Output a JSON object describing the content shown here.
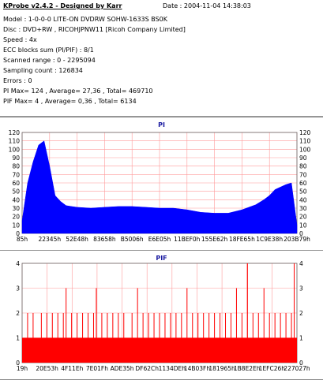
{
  "header": {
    "title": "KProbe v2.4.2 - Designed by Karr",
    "date": "Date : 2004-11-04 14:38:03"
  },
  "info_lines": [
    "Model : 1-0-0-0 LITE-ON DVDRW SOHW-1633S BS0K",
    "Disc : DVD+RW , RICOHJPNW11 [Ricoh Company Limited]",
    "Speed : 4x",
    "ECC blocks sum (PI/PIF) : 8/1",
    "Scanned range : 0 - 2295094",
    "Sampling count : 126834",
    "Errors : 0",
    "PI Max= 124 , Average= 27,36 , Total= 469710",
    "PIF Max= 4 , Average= 0,36 , Total= 6134"
  ],
  "colors": {
    "pi_fill": "#0000ff",
    "pif_fill": "#ff0000",
    "grid": "#ff9a9a",
    "title": "#1a1aa0"
  },
  "chart_data": [
    {
      "type": "area",
      "title": "PI",
      "ylim": [
        0,
        120
      ],
      "yticks": [
        0,
        10,
        20,
        30,
        40,
        50,
        60,
        70,
        80,
        90,
        100,
        110,
        120
      ],
      "xtick_labels": [
        "85h",
        "22345h",
        "52E48h",
        "83658h",
        "B5006h",
        "E6E05h",
        "11BEF0h",
        "155E62h",
        "18FE65h",
        "1C9E38h",
        "203B79h"
      ],
      "grid": true,
      "series": [
        {
          "x_frac": [
            0,
            0.02,
            0.04,
            0.06,
            0.08,
            0.1,
            0.12,
            0.14,
            0.16,
            0.18,
            0.2,
            0.25,
            0.3,
            0.35,
            0.4,
            0.45,
            0.5,
            0.55,
            0.6,
            0.65,
            0.7,
            0.75,
            0.8,
            0.85,
            0.88,
            0.9,
            0.92,
            0.94,
            0.96,
            0.98,
            1.0
          ],
          "values": [
            15,
            60,
            85,
            105,
            110,
            80,
            45,
            38,
            33,
            32,
            31,
            30,
            31,
            32,
            32,
            31,
            30,
            30,
            28,
            25,
            24,
            24,
            28,
            34,
            40,
            45,
            52,
            55,
            58,
            60,
            10
          ]
        }
      ]
    },
    {
      "type": "bar",
      "title": "PIF",
      "ylim": [
        0,
        4
      ],
      "yticks": [
        0,
        1,
        2,
        3,
        4
      ],
      "xtick_labels": [
        "19h",
        "20E53h",
        "4F11Eh",
        "7E01Fh",
        "ADE35h",
        "DF62Ch",
        "1134DEh",
        "14B03Fh",
        "181965h",
        "1B8E2Eh",
        "1EFC26h",
        "227027h"
      ],
      "grid": true,
      "series": [
        {
          "baseline_value": 1,
          "spikes": [
            {
              "x_frac": 0.02,
              "v": 2
            },
            {
              "x_frac": 0.04,
              "v": 2
            },
            {
              "x_frac": 0.07,
              "v": 2
            },
            {
              "x_frac": 0.09,
              "v": 2
            },
            {
              "x_frac": 0.11,
              "v": 2
            },
            {
              "x_frac": 0.13,
              "v": 2
            },
            {
              "x_frac": 0.15,
              "v": 2
            },
            {
              "x_frac": 0.16,
              "v": 3
            },
            {
              "x_frac": 0.18,
              "v": 2
            },
            {
              "x_frac": 0.2,
              "v": 2
            },
            {
              "x_frac": 0.22,
              "v": 2
            },
            {
              "x_frac": 0.24,
              "v": 2
            },
            {
              "x_frac": 0.26,
              "v": 2
            },
            {
              "x_frac": 0.27,
              "v": 3
            },
            {
              "x_frac": 0.29,
              "v": 2
            },
            {
              "x_frac": 0.31,
              "v": 2
            },
            {
              "x_frac": 0.33,
              "v": 2
            },
            {
              "x_frac": 0.35,
              "v": 2
            },
            {
              "x_frac": 0.37,
              "v": 2
            },
            {
              "x_frac": 0.4,
              "v": 2
            },
            {
              "x_frac": 0.42,
              "v": 3
            },
            {
              "x_frac": 0.44,
              "v": 2
            },
            {
              "x_frac": 0.46,
              "v": 2
            },
            {
              "x_frac": 0.48,
              "v": 2
            },
            {
              "x_frac": 0.5,
              "v": 2
            },
            {
              "x_frac": 0.52,
              "v": 2
            },
            {
              "x_frac": 0.54,
              "v": 2
            },
            {
              "x_frac": 0.56,
              "v": 2
            },
            {
              "x_frac": 0.58,
              "v": 2
            },
            {
              "x_frac": 0.6,
              "v": 3
            },
            {
              "x_frac": 0.62,
              "v": 2
            },
            {
              "x_frac": 0.64,
              "v": 2
            },
            {
              "x_frac": 0.66,
              "v": 2
            },
            {
              "x_frac": 0.68,
              "v": 2
            },
            {
              "x_frac": 0.7,
              "v": 2
            },
            {
              "x_frac": 0.72,
              "v": 2
            },
            {
              "x_frac": 0.74,
              "v": 2
            },
            {
              "x_frac": 0.76,
              "v": 2
            },
            {
              "x_frac": 0.78,
              "v": 3
            },
            {
              "x_frac": 0.8,
              "v": 2
            },
            {
              "x_frac": 0.82,
              "v": 4
            },
            {
              "x_frac": 0.84,
              "v": 2
            },
            {
              "x_frac": 0.86,
              "v": 2
            },
            {
              "x_frac": 0.88,
              "v": 3
            },
            {
              "x_frac": 0.9,
              "v": 2
            },
            {
              "x_frac": 0.92,
              "v": 2
            },
            {
              "x_frac": 0.94,
              "v": 2
            },
            {
              "x_frac": 0.96,
              "v": 2
            },
            {
              "x_frac": 0.98,
              "v": 2
            },
            {
              "x_frac": 0.99,
              "v": 4
            }
          ]
        }
      ]
    }
  ]
}
